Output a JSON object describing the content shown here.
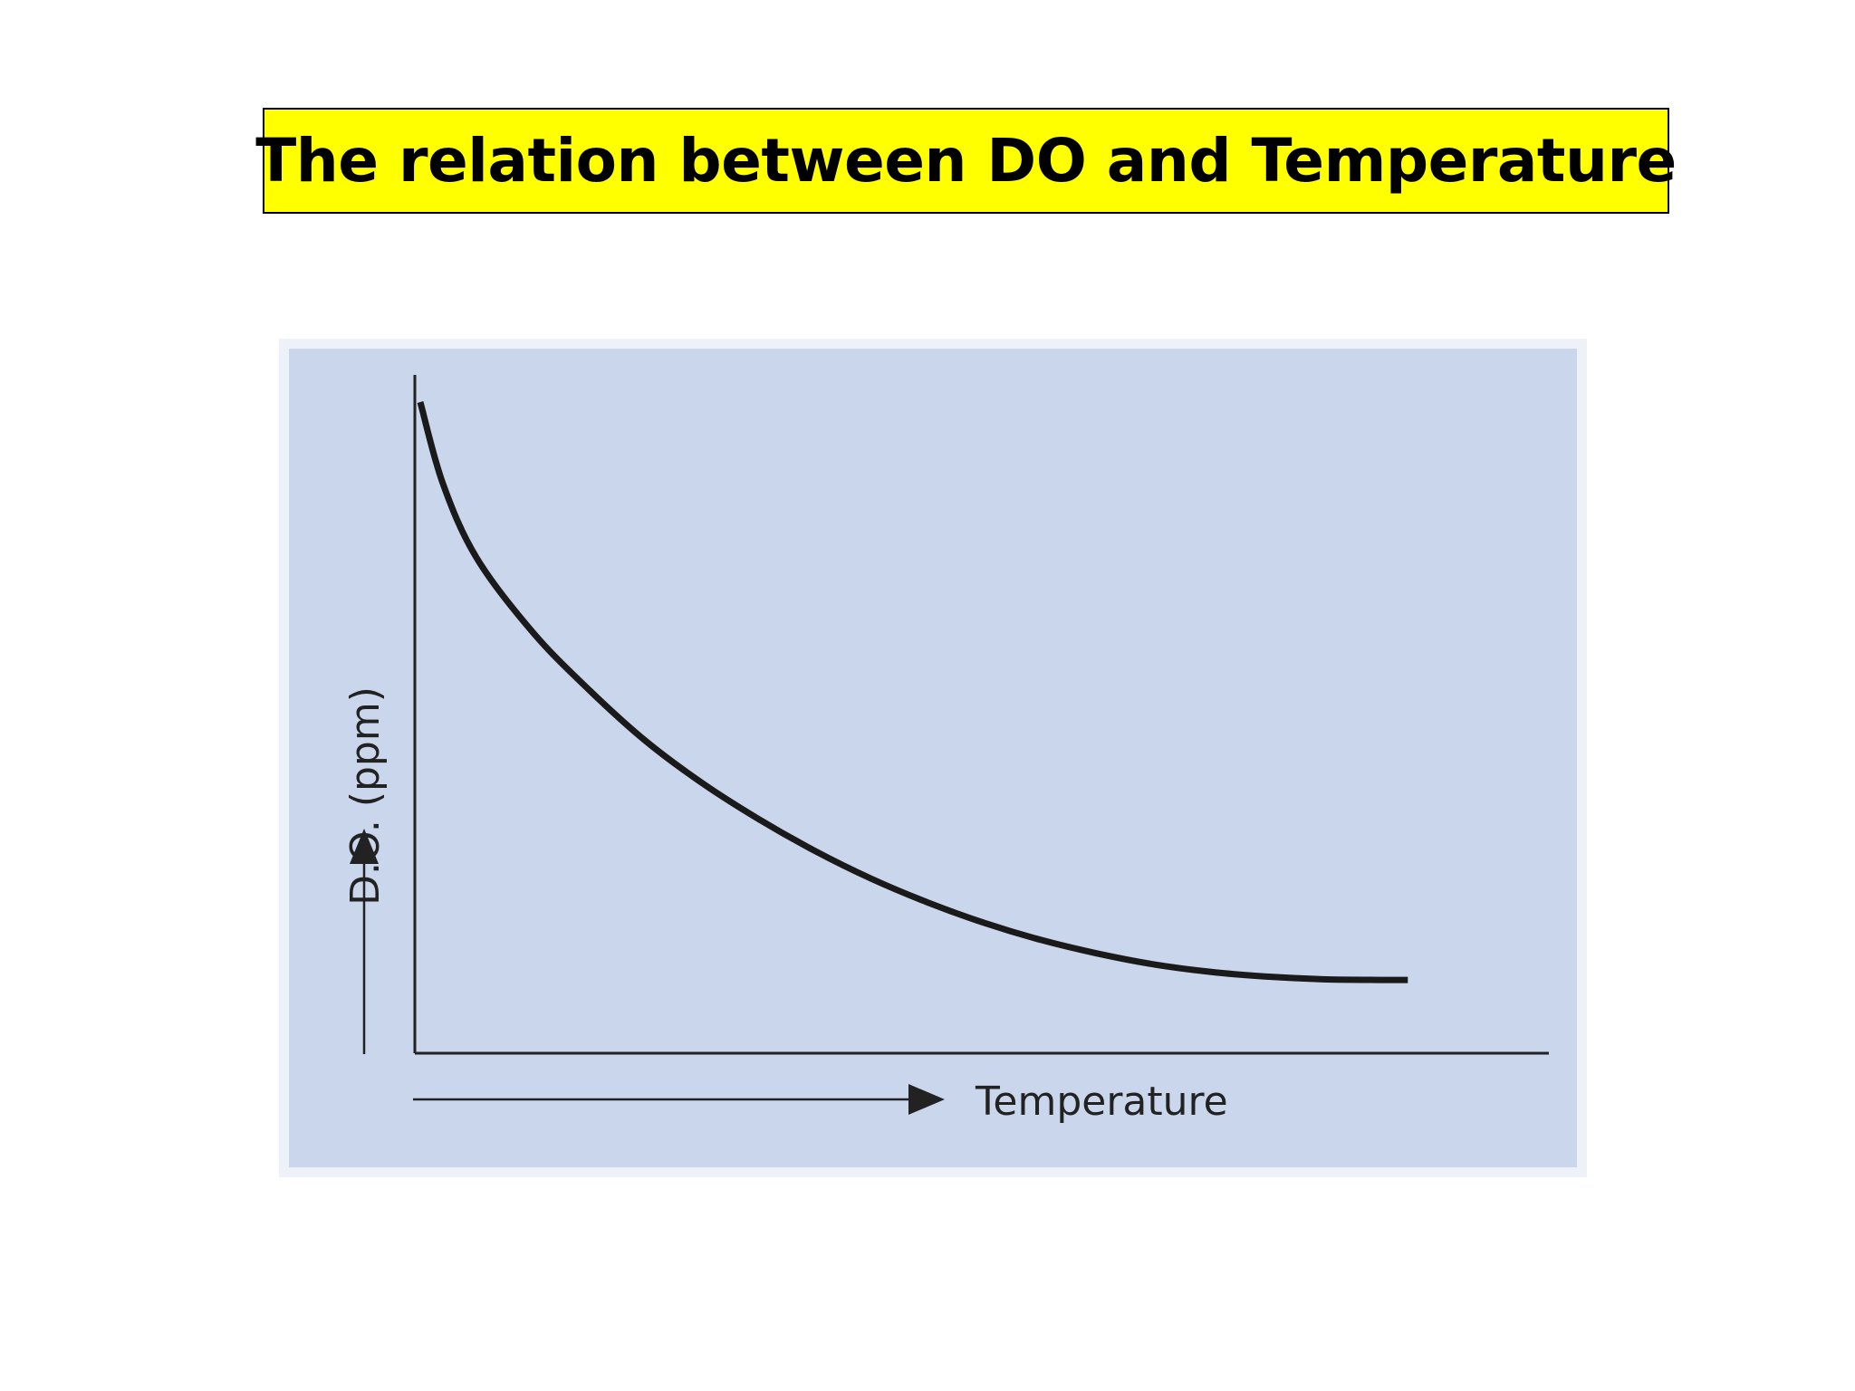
{
  "slide": {
    "title": "The relation between DO and Temperature"
  },
  "colors": {
    "title_background": "#ffff00",
    "plot_background": "#c9d6ec",
    "curve": "#1a1a1a",
    "axis": "#222222"
  },
  "chart_data": {
    "type": "line",
    "title": "",
    "xlabel": "Temperature",
    "ylabel": "D.O. (ppm)",
    "grid": false,
    "legend": "none",
    "ticks": "none",
    "xlim": [
      0,
      100
    ],
    "ylim": [
      0,
      100
    ],
    "series": [
      {
        "x": [
          0,
          2,
          5,
          10,
          15,
          20,
          25,
          30,
          35,
          40,
          45,
          50,
          55,
          60,
          65,
          70,
          75,
          80,
          85,
          87.5
        ],
        "y": [
          96,
          84,
          73,
          62,
          53.5,
          46,
          39.8,
          34.5,
          29.8,
          25.7,
          22.2,
          19.2,
          16.7,
          14.7,
          13.1,
          12,
          11.3,
          10.9,
          10.8,
          10.8
        ]
      }
    ]
  }
}
